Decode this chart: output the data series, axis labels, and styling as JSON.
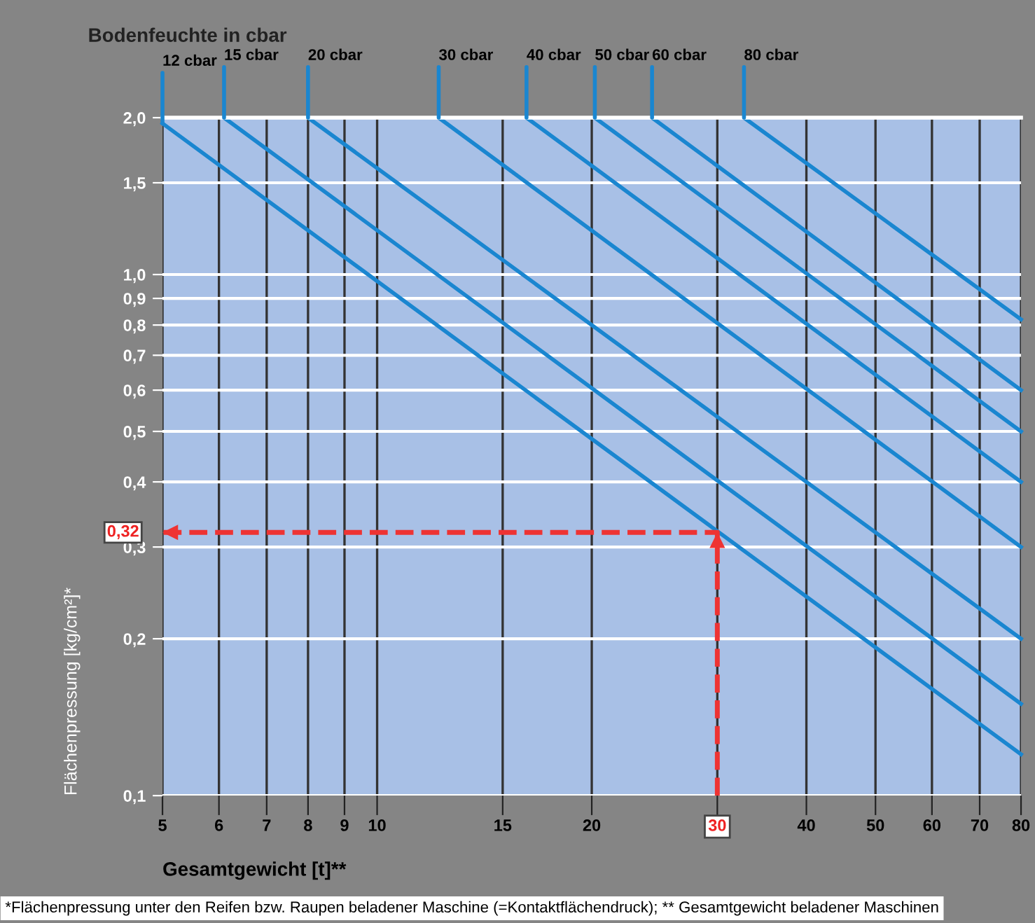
{
  "chart_data": {
    "type": "line",
    "title": "Bodenfeuchte in cbar",
    "xlabel": "Gesamtgewicht [t]**",
    "ylabel": "Flächenpressung [kg/cm²]*",
    "log": "xy",
    "grid": true,
    "legend": false,
    "marker": "none",
    "line_style": "solid",
    "xlim": [
      5,
      80
    ],
    "ylim": [
      0.1,
      2.0
    ],
    "xticks": [
      5,
      6,
      7,
      8,
      9,
      10,
      15,
      20,
      30,
      40,
      50,
      60,
      70,
      80
    ],
    "yticks": [
      {
        "value": 0.1,
        "label": "0,1"
      },
      {
        "value": 0.2,
        "label": "0,2"
      },
      {
        "value": 0.3,
        "label": "0,3"
      },
      {
        "value": 0.4,
        "label": "0,4"
      },
      {
        "value": 0.5,
        "label": "0,5"
      },
      {
        "value": 0.6,
        "label": "0,6"
      },
      {
        "value": 0.7,
        "label": "0,7"
      },
      {
        "value": 0.8,
        "label": "0,8"
      },
      {
        "value": 0.9,
        "label": "0,9"
      },
      {
        "value": 1.0,
        "label": "1,0"
      },
      {
        "value": 1.5,
        "label": "1,5"
      },
      {
        "value": 2.0,
        "label": "2,0"
      }
    ],
    "series": [
      {
        "name": "12 cbar",
        "color": "#1a86d0",
        "x": [
          5,
          80
        ],
        "values": [
          1.95,
          0.12
        ]
      },
      {
        "name": "15 cbar",
        "color": "#1a86d0",
        "x": [
          6.1,
          80
        ],
        "values": [
          2.0,
          0.15
        ]
      },
      {
        "name": "20 cbar",
        "color": "#1a86d0",
        "x": [
          8.0,
          80
        ],
        "values": [
          2.0,
          0.2
        ]
      },
      {
        "name": "30 cbar",
        "color": "#1a86d0",
        "x": [
          12.2,
          80
        ],
        "values": [
          2.0,
          0.3
        ]
      },
      {
        "name": "40 cbar",
        "color": "#1a86d0",
        "x": [
          16.2,
          80
        ],
        "values": [
          2.0,
          0.4
        ]
      },
      {
        "name": "50 cbar",
        "color": "#1a86d0",
        "x": [
          20.2,
          80
        ],
        "values": [
          2.0,
          0.5
        ]
      },
      {
        "name": "60 cbar",
        "color": "#1a86d0",
        "x": [
          24.3,
          80
        ],
        "values": [
          2.0,
          0.6
        ]
      },
      {
        "name": "80 cbar",
        "color": "#1a86d0",
        "x": [
          32.7,
          80
        ],
        "values": [
          2.0,
          0.82
        ]
      },
      {
        "color": "#ee3333",
        "line_style": "dashed",
        "x": [
          30,
          30,
          5
        ],
        "values": [
          0.1,
          0.32,
          0.32
        ]
      }
    ],
    "annotations": [
      {
        "text": "0,32",
        "x": 5,
        "y": 0.32
      },
      "*Flächenpressung unter den Reifen bzw. Raupen beladener Maschine (=Kontaktflächendruck); ** Gesamtgewicht beladener Maschinen"
    ]
  }
}
